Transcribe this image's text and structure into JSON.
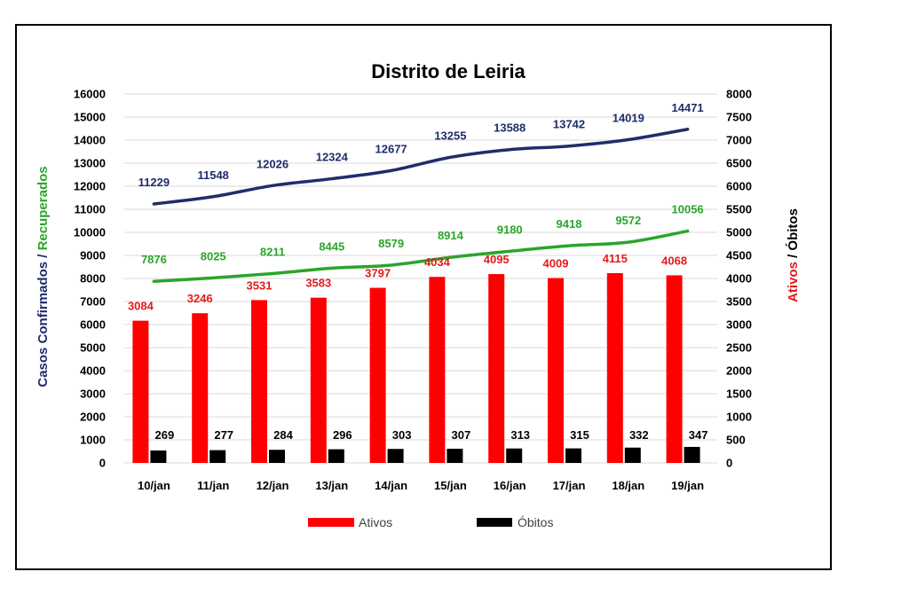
{
  "chart_data": {
    "type": "bar",
    "title": "Distrito de Leiria",
    "categories": [
      "10/jan",
      "11/jan",
      "12/jan",
      "13/jan",
      "14/jan",
      "15/jan",
      "16/jan",
      "17/jan",
      "18/jan",
      "19/jan"
    ],
    "ylabel_left": {
      "part1": "Casos Confirmados / ",
      "part2": "Recuperados",
      "color1": "#1f2d6b",
      "color2": "#2aa52a"
    },
    "ylabel_right": {
      "part1": "Ativos",
      "part2": " / Óbitos",
      "color1": "#e11b1b",
      "color2": "#000000"
    },
    "ylim_left": [
      0,
      16000
    ],
    "ylim_right": [
      0,
      8000
    ],
    "yticks_left": [
      "0",
      "1000",
      "2000",
      "3000",
      "4000",
      "5000",
      "6000",
      "7000",
      "8000",
      "9000",
      "10000",
      "11000",
      "12000",
      "13000",
      "14000",
      "15000",
      "16000"
    ],
    "yticks_right": [
      "0",
      "500",
      "1000",
      "1500",
      "2000",
      "2500",
      "3000",
      "3500",
      "4000",
      "4500",
      "5000",
      "5500",
      "6000",
      "6500",
      "7000",
      "7500",
      "8000"
    ],
    "grid": true,
    "series": [
      {
        "name": "Ativos",
        "kind": "bar",
        "axis": "right",
        "color": "#ff0000",
        "label_color": "#e11b1b",
        "values": [
          3084,
          3246,
          3531,
          3583,
          3797,
          4034,
          4095,
          4009,
          4115,
          4068
        ]
      },
      {
        "name": "Óbitos",
        "kind": "bar",
        "axis": "right",
        "color": "#000000",
        "label_color": "#000000",
        "values": [
          269,
          277,
          284,
          296,
          303,
          307,
          313,
          315,
          332,
          347
        ]
      },
      {
        "kind": "line",
        "axis": "left",
        "color": "#1f2d6b",
        "label_color": "#1f2d6b",
        "values": [
          11229,
          11548,
          12026,
          12324,
          12677,
          13255,
          13588,
          13742,
          14019,
          14471
        ]
      },
      {
        "kind": "line",
        "axis": "left",
        "color": "#2aa52a",
        "label_color": "#2aa52a",
        "values": [
          7876,
          8025,
          8211,
          8445,
          8579,
          8914,
          9180,
          9418,
          9572,
          10056
        ]
      }
    ],
    "legend": {
      "position": "bottom",
      "items": [
        {
          "label": "Ativos",
          "color": "#ff0000"
        },
        {
          "label": "Óbitos",
          "color": "#000000"
        }
      ]
    }
  }
}
